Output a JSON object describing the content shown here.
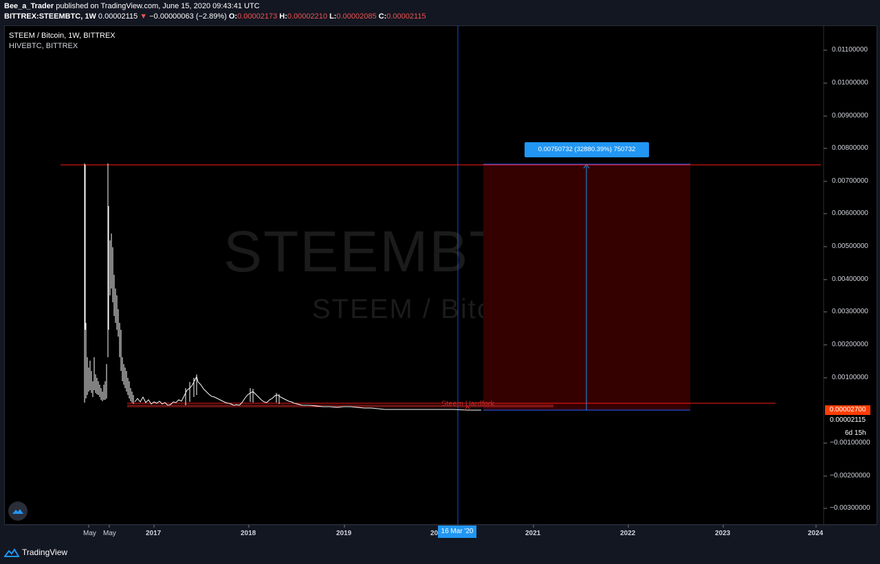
{
  "header": {
    "author": "Bee_a_Trader",
    "published_text": " published on TradingView.com, June 15, 2020 09:43:41 UTC",
    "symbol_full": "BITTREX:STEEMBTC, 1W",
    "last": "0.00002115",
    "change": "−0.00000063 (−2.89%)",
    "open_label": "O:",
    "open": "0.00002173",
    "high_label": "H:",
    "high": "0.00002210",
    "low_label": "L:",
    "low": "0.00002085",
    "close_label": "C:",
    "close": "0.00002115"
  },
  "legend": {
    "main_series": "STEEM / Bitcoin, 1W, BITTREX",
    "compare_series": "HIVEBTC, BITTREX"
  },
  "watermark": {
    "symbol": "STEEMBTC, 1W",
    "description": "STEEM / Bitcoin"
  },
  "price_axis": {
    "labels": [
      "0.01100000",
      "0.01000000",
      "0.00900000",
      "0.00800000",
      "0.00700000",
      "0.00600000",
      "0.00500000",
      "0.00400000",
      "0.00300000",
      "0.00200000",
      "0.00100000",
      "−0.00100000",
      "−0.00200000",
      "−0.00300000"
    ],
    "marker_price": "0.00002700",
    "current_price": "0.00002115",
    "countdown": "6d 15h"
  },
  "time_axis": {
    "labels": [
      "May",
      "May",
      "2017",
      "2018",
      "2019",
      "20",
      "2021",
      "2022",
      "2023",
      "2024"
    ],
    "cursor_label": "16 Mar '20"
  },
  "drawings": {
    "measure_label": "0.00750732 (32880.39%) 750732",
    "hardfork_text": "Steem Hardfork"
  },
  "footer": {
    "brand": "TradingView"
  },
  "colors": {
    "background": "#000000",
    "panel": "#131722",
    "accent": "#2196f3",
    "down": "#ef5350",
    "line": "#ff0000",
    "measure_fill": "#350000"
  }
}
